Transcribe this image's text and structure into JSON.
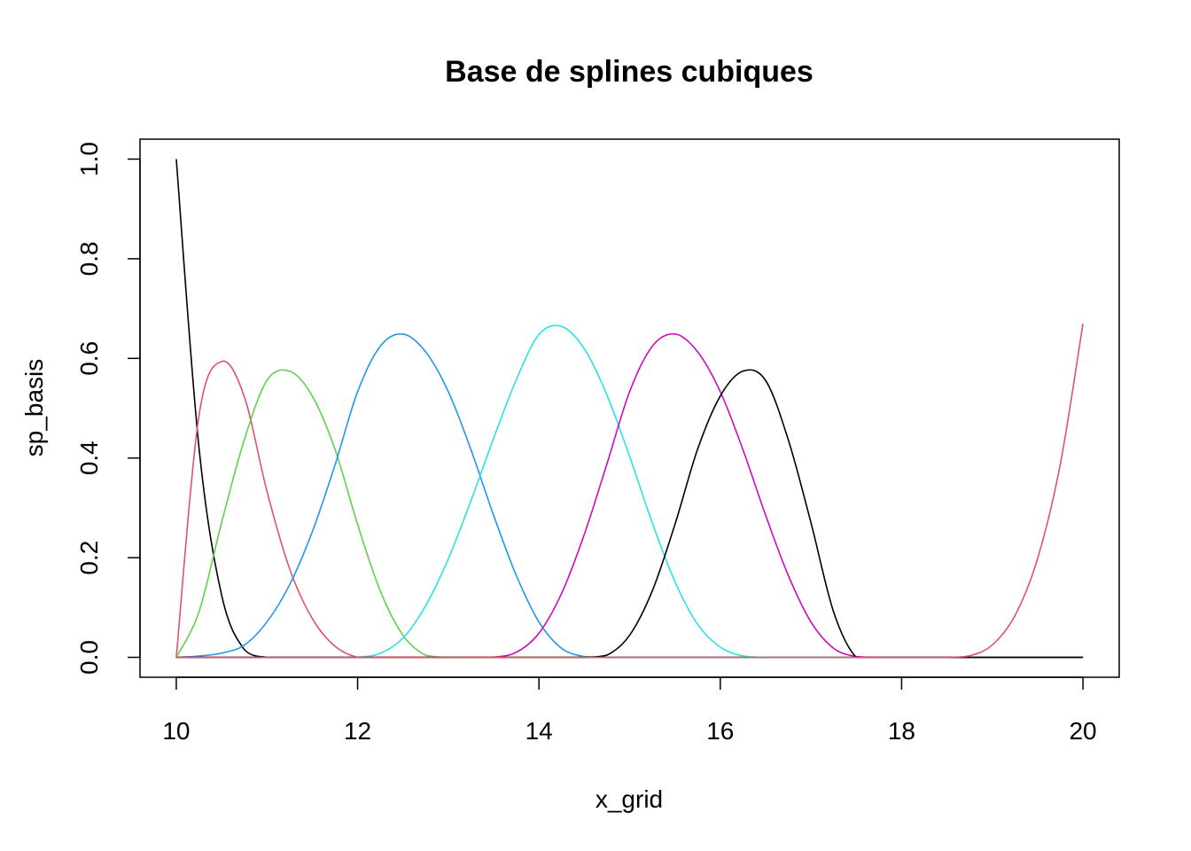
{
  "chart_data": {
    "type": "line",
    "title": "Base de splines cubiques",
    "xlabel": "x_grid",
    "ylabel": "sp_basis",
    "xlim": [
      9.6,
      20.4
    ],
    "ylim": [
      -0.04,
      1.04
    ],
    "xticks": [
      10,
      12,
      14,
      16,
      18,
      20
    ],
    "xtick_labels": [
      "10",
      "12",
      "14",
      "16",
      "18",
      "20"
    ],
    "yticks": [
      0,
      0.2,
      0.4,
      0.6,
      0.8,
      1.0
    ],
    "ytick_labels": [
      "0.0",
      "0.2",
      "0.4",
      "0.6",
      "0.8",
      "1.0"
    ],
    "grid": false,
    "spline": {
      "degree": 3,
      "boundary_knots": [
        10,
        20
      ],
      "interior_knots": [
        11.25,
        12.5,
        13.75,
        15,
        16.25,
        17.5,
        18.75
      ]
    },
    "x": [
      10,
      10.25,
      10.5,
      10.75,
      11,
      11.25,
      11.5,
      11.75,
      12,
      12.25,
      12.5,
      12.75,
      13,
      13.25,
      13.5,
      13.75,
      14,
      14.25,
      14.5,
      14.75,
      15,
      15.25,
      15.5,
      15.75,
      16,
      16.25,
      16.5,
      16.75,
      17,
      17.25,
      17.5,
      17.75,
      18,
      18.25,
      18.5,
      18.75,
      19,
      19.25,
      19.5,
      19.75,
      20
    ],
    "series": [
      {
        "color": "#000000",
        "values": [
          1,
          0.4219,
          0.125,
          0.0156,
          0,
          0,
          0,
          0,
          0,
          0,
          0,
          0,
          0,
          0,
          0,
          0,
          0,
          0,
          0,
          0,
          0,
          0,
          0,
          0,
          0,
          0,
          0,
          0,
          0,
          0,
          0,
          0,
          0,
          0,
          0,
          0,
          0,
          0,
          0,
          0,
          0
        ]
      },
      {
        "color": "#DF536B",
        "values": [
          0,
          0.4844,
          0.5938,
          0.5234,
          0.3333,
          0.1778,
          0.0778,
          0.0222,
          0,
          0,
          0,
          0,
          0,
          0,
          0,
          0,
          0,
          0,
          0,
          0,
          0,
          0,
          0,
          0,
          0,
          0,
          0,
          0,
          0,
          0,
          0,
          0,
          0,
          0,
          0,
          0,
          0,
          0,
          0,
          0,
          0
        ]
      },
      {
        "color": "#61D04F",
        "values": [
          0,
          0.0911,
          0.2704,
          0.4366,
          0.5556,
          0.5744,
          0.5244,
          0.4178,
          0.2667,
          0.1333,
          0.0444,
          0.0044,
          0,
          0,
          0,
          0,
          0,
          0,
          0,
          0,
          0,
          0,
          0,
          0,
          0,
          0,
          0,
          0,
          0,
          0,
          0,
          0,
          0,
          0,
          0,
          0,
          0,
          0,
          0,
          0,
          0
        ]
      },
      {
        "color": "#2297E6",
        "values": [
          0,
          0.0026,
          0.0085,
          0.0244,
          0.0711,
          0.1456,
          0.2519,
          0.3856,
          0.5333,
          0.6244,
          0.6489,
          0.6133,
          0.5333,
          0.4167,
          0.2852,
          0.1644,
          0.0711,
          0.0181,
          0.0015,
          0,
          0,
          0,
          0,
          0,
          0,
          0,
          0,
          0,
          0,
          0,
          0,
          0,
          0,
          0,
          0,
          0,
          0,
          0,
          0,
          0,
          0
        ]
      },
      {
        "color": "#28E2E5",
        "values": [
          0,
          0,
          0,
          0,
          0,
          0,
          0,
          0,
          0.0002,
          0.0081,
          0.0385,
          0.1035,
          0.1975,
          0.3143,
          0.4396,
          0.5571,
          0.6479,
          0.6641,
          0.6193,
          0.5265,
          0.4033,
          0.2699,
          0.1519,
          0.0662,
          0.0205,
          0.0028,
          0,
          0,
          0,
          0,
          0,
          0,
          0,
          0,
          0,
          0,
          0,
          0,
          0,
          0,
          0
        ]
      },
      {
        "color": "#CD0BBC",
        "values": [
          0,
          0,
          0,
          0,
          0,
          0,
          0,
          0,
          0,
          0,
          0,
          0,
          0,
          0,
          0.0003,
          0.0101,
          0.0483,
          0.1284,
          0.2467,
          0.3884,
          0.5333,
          0.6244,
          0.6489,
          0.6133,
          0.5333,
          0.4167,
          0.2852,
          0.1644,
          0.0711,
          0.0181,
          0.0015,
          0,
          0,
          0,
          0,
          0,
          0,
          0,
          0,
          0,
          0
        ]
      },
      {
        "color": "#000000",
        "values": [
          0,
          0,
          0,
          0,
          0,
          0,
          0,
          0,
          0,
          0,
          0,
          0,
          0,
          0,
          0,
          0,
          0,
          0,
          0,
          0.0044,
          0.0444,
          0.1333,
          0.2667,
          0.4178,
          0.5244,
          0.5744,
          0.5556,
          0.4366,
          0.2704,
          0.0911,
          0,
          0,
          0,
          0,
          0,
          0,
          0,
          0,
          0,
          0,
          0
        ]
      },
      {
        "color": "#DF536B",
        "values": [
          0,
          0,
          0,
          0,
          0,
          0,
          0,
          0,
          0,
          0,
          0,
          0,
          0,
          0,
          0,
          0,
          0,
          0,
          0,
          0,
          0,
          0,
          0,
          0,
          0,
          0,
          0,
          0,
          0,
          0,
          0,
          0,
          0,
          0,
          0,
          0.0031,
          0.0248,
          0.0837,
          0.1984,
          0.3875,
          0.6696
        ]
      }
    ]
  }
}
